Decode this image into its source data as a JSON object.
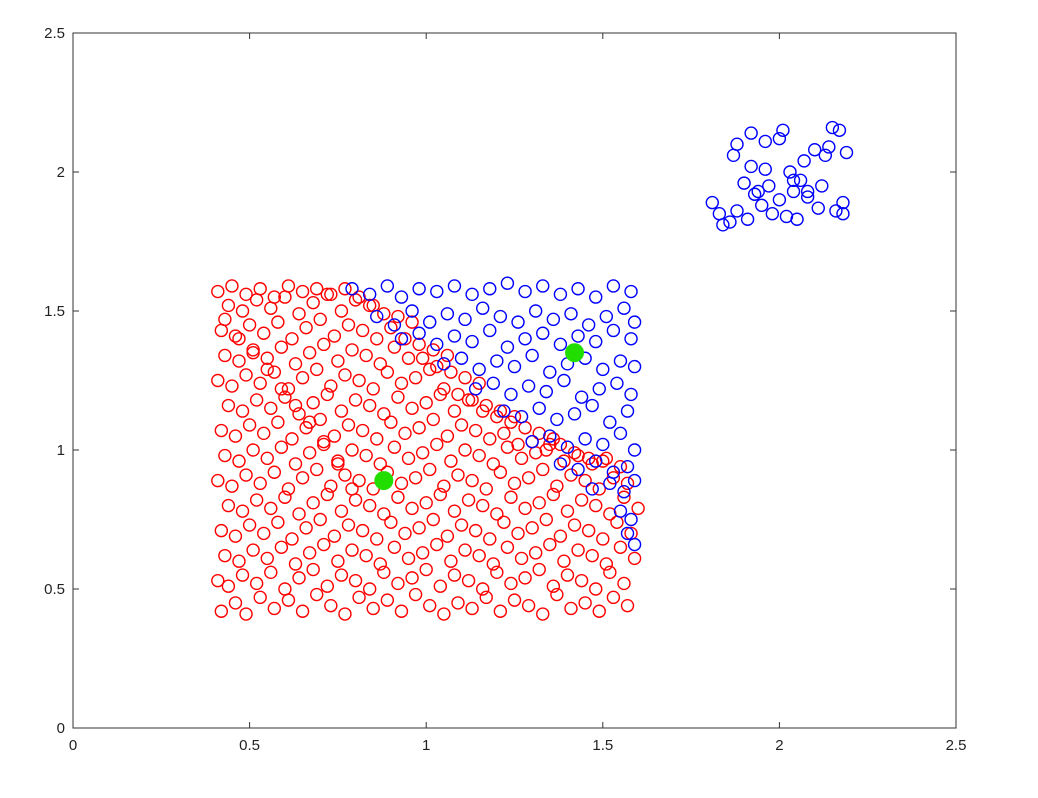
{
  "chart_data": {
    "type": "scatter",
    "title": "",
    "xlabel": "",
    "ylabel": "",
    "xlim": [
      0,
      2.5
    ],
    "ylim": [
      0,
      2.5
    ],
    "grid": false,
    "legend": "none",
    "xticks": [
      "0",
      "0.5",
      "1",
      "1.5",
      "2",
      "2.5"
    ],
    "yticks": [
      "0",
      "0.5",
      "1",
      "1.5",
      "2",
      "2.5"
    ],
    "colors": {
      "cluster_1": "#ff0000",
      "cluster_2": "#0000ff",
      "centroids": "#22dd00"
    },
    "series": [
      {
        "marker": "open-circle",
        "color": "#ff0000",
        "x": [
          0.42,
          0.46,
          0.49,
          0.53,
          0.57,
          0.61,
          0.65,
          0.69,
          0.73,
          0.77,
          0.81,
          0.85,
          0.89,
          0.93,
          0.97,
          1.01,
          1.05,
          1.09,
          1.13,
          1.17,
          1.21,
          1.25,
          1.29,
          1.33,
          1.37,
          1.41,
          1.45,
          1.49,
          1.53,
          1.57,
          0.41,
          0.44,
          0.48,
          0.52,
          0.56,
          0.6,
          0.64,
          0.68,
          0.72,
          0.76,
          0.8,
          0.84,
          0.88,
          0.92,
          0.96,
          1.0,
          1.04,
          1.08,
          1.12,
          1.16,
          1.2,
          1.24,
          1.28,
          1.32,
          1.36,
          1.4,
          1.44,
          1.48,
          1.52,
          1.56,
          0.43,
          0.47,
          0.51,
          0.55,
          0.59,
          0.63,
          0.67,
          0.71,
          0.75,
          0.79,
          0.83,
          0.87,
          0.91,
          0.95,
          0.99,
          1.03,
          1.07,
          1.11,
          1.15,
          1.19,
          1.23,
          1.27,
          1.31,
          1.35,
          1.39,
          1.43,
          1.47,
          1.51,
          1.55,
          1.59,
          0.42,
          0.46,
          0.5,
          0.54,
          0.58,
          0.62,
          0.66,
          0.7,
          0.74,
          0.78,
          0.82,
          0.86,
          0.9,
          0.94,
          0.98,
          1.02,
          1.06,
          1.1,
          1.14,
          1.18,
          1.22,
          1.26,
          1.3,
          1.34,
          1.38,
          1.42,
          1.46,
          1.5,
          1.54,
          1.58,
          0.44,
          0.48,
          0.52,
          0.56,
          0.6,
          0.64,
          0.68,
          0.72,
          0.76,
          0.8,
          0.84,
          0.88,
          0.92,
          0.96,
          1.0,
          1.04,
          1.08,
          1.12,
          1.16,
          1.2,
          1.24,
          1.28,
          1.32,
          1.36,
          1.4,
          1.44,
          1.48,
          1.52,
          1.56,
          1.6,
          0.41,
          0.45,
          0.49,
          0.53,
          0.57,
          0.61,
          0.65,
          0.69,
          0.73,
          0.77,
          0.81,
          0.85,
          0.89,
          0.93,
          0.97,
          1.01,
          1.05,
          1.09,
          1.13,
          1.17,
          1.21,
          1.25,
          1.29,
          1.33,
          1.37,
          1.41,
          1.45,
          1.49,
          1.53,
          1.57,
          0.43,
          0.47,
          0.51,
          0.55,
          0.59,
          0.63,
          0.67,
          0.71,
          0.75,
          0.79,
          0.83,
          0.87,
          0.91,
          0.95,
          0.99,
          1.03,
          1.07,
          1.11,
          1.15,
          1.19,
          1.23,
          1.27,
          1.31,
          1.35,
          1.39,
          1.43,
          1.47,
          1.51,
          1.55,
          0.42,
          0.46,
          0.5,
          0.54,
          0.58,
          0.62,
          0.66,
          0.7,
          0.74,
          0.78,
          0.82,
          0.86,
          0.9,
          0.94,
          0.98,
          1.02,
          1.06,
          1.1,
          1.14,
          1.18,
          1.22,
          1.26,
          1.3,
          1.34,
          1.38,
          1.42,
          1.46,
          1.5,
          0.44,
          0.48,
          0.52,
          0.56,
          0.6,
          0.64,
          0.68,
          0.72,
          0.76,
          0.8,
          0.84,
          0.88,
          0.92,
          0.96,
          1.0,
          1.04,
          1.08,
          1.12,
          1.16,
          1.2,
          1.24,
          1.28,
          1.32,
          1.36,
          0.41,
          0.45,
          0.49,
          0.53,
          0.57,
          0.61,
          0.65,
          0.69,
          0.73,
          0.77,
          0.81,
          0.85,
          0.89,
          0.93,
          0.97,
          1.01,
          1.05,
          1.09,
          1.13,
          1.17,
          1.21,
          1.25,
          0.43,
          0.47,
          0.51,
          0.55,
          0.59,
          0.63,
          0.67,
          0.71,
          0.75,
          0.79,
          0.83,
          0.87,
          0.91,
          0.95,
          0.99,
          1.03,
          1.07,
          1.11,
          1.15,
          0.42,
          0.46,
          0.5,
          0.54,
          0.58,
          0.62,
          0.66,
          0.7,
          0.74,
          0.78,
          0.82,
          0.86,
          0.9,
          0.94,
          0.98,
          1.02,
          1.06,
          0.44,
          0.48,
          0.52,
          0.56,
          0.6,
          0.64,
          0.68,
          0.72,
          0.76,
          0.8,
          0.84,
          0.88,
          0.92,
          0.96,
          0.41,
          0.45,
          0.49,
          0.53,
          0.57,
          0.61,
          0.65,
          0.69,
          0.73,
          0.77,
          0.81,
          0.85,
          0.43,
          0.47,
          0.51,
          0.55,
          0.59,
          0.63,
          0.67,
          0.71,
          0.75,
          0.79
        ],
        "y": [
          0.42,
          0.45,
          0.41,
          0.47,
          0.43,
          0.46,
          0.42,
          0.48,
          0.44,
          0.41,
          0.47,
          0.43,
          0.46,
          0.42,
          0.48,
          0.44,
          0.41,
          0.45,
          0.43,
          0.47,
          0.42,
          0.46,
          0.44,
          0.41,
          0.48,
          0.43,
          0.45,
          0.42,
          0.47,
          0.44,
          0.53,
          0.51,
          0.55,
          0.52,
          0.56,
          0.5,
          0.54,
          0.57,
          0.51,
          0.55,
          0.53,
          0.5,
          0.56,
          0.52,
          0.54,
          0.57,
          0.51,
          0.55,
          0.53,
          0.5,
          0.56,
          0.52,
          0.54,
          0.57,
          0.51,
          0.55,
          0.53,
          0.5,
          0.56,
          0.52,
          0.62,
          0.6,
          0.64,
          0.61,
          0.65,
          0.59,
          0.63,
          0.66,
          0.6,
          0.64,
          0.62,
          0.59,
          0.65,
          0.61,
          0.63,
          0.66,
          0.6,
          0.64,
          0.62,
          0.59,
          0.65,
          0.61,
          0.63,
          0.66,
          0.6,
          0.64,
          0.62,
          0.59,
          0.65,
          0.61,
          0.71,
          0.69,
          0.73,
          0.7,
          0.74,
          0.68,
          0.72,
          0.75,
          0.69,
          0.73,
          0.71,
          0.68,
          0.74,
          0.7,
          0.72,
          0.75,
          0.69,
          0.73,
          0.71,
          0.68,
          0.74,
          0.7,
          0.72,
          0.75,
          0.69,
          0.73,
          0.71,
          0.68,
          0.74,
          0.7,
          0.8,
          0.78,
          0.82,
          0.79,
          0.83,
          0.77,
          0.81,
          0.84,
          0.78,
          0.82,
          0.8,
          0.77,
          0.83,
          0.79,
          0.81,
          0.84,
          0.78,
          0.82,
          0.8,
          0.77,
          0.83,
          0.79,
          0.81,
          0.84,
          0.78,
          0.82,
          0.8,
          0.77,
          0.83,
          0.79,
          0.89,
          0.87,
          0.91,
          0.88,
          0.92,
          0.86,
          0.9,
          0.93,
          0.87,
          0.91,
          0.89,
          0.86,
          0.92,
          0.88,
          0.9,
          0.93,
          0.87,
          0.91,
          0.89,
          0.86,
          0.92,
          0.88,
          0.9,
          0.93,
          0.87,
          0.91,
          0.89,
          0.86,
          0.9,
          0.88,
          0.98,
          0.96,
          1.0,
          0.97,
          1.01,
          0.95,
          0.99,
          1.02,
          0.96,
          1.0,
          0.98,
          0.95,
          1.01,
          0.97,
          0.99,
          1.02,
          0.96,
          1.0,
          0.98,
          0.95,
          1.01,
          0.97,
          0.99,
          1.02,
          0.96,
          0.98,
          0.95,
          0.97,
          0.94,
          1.07,
          1.05,
          1.09,
          1.06,
          1.1,
          1.04,
          1.08,
          1.11,
          1.05,
          1.09,
          1.07,
          1.04,
          1.1,
          1.06,
          1.08,
          1.11,
          1.05,
          1.09,
          1.07,
          1.04,
          1.06,
          1.02,
          1.03,
          1.0,
          1.02,
          0.99,
          0.97,
          0.96,
          1.16,
          1.14,
          1.18,
          1.15,
          1.19,
          1.13,
          1.17,
          1.2,
          1.14,
          1.18,
          1.16,
          1.13,
          1.19,
          1.15,
          1.17,
          1.2,
          1.14,
          1.18,
          1.14,
          1.12,
          1.1,
          1.08,
          1.06,
          1.04,
          1.25,
          1.23,
          1.27,
          1.24,
          1.28,
          1.22,
          1.26,
          1.29,
          1.23,
          1.27,
          1.25,
          1.22,
          1.28,
          1.24,
          1.26,
          1.29,
          1.22,
          1.2,
          1.18,
          1.16,
          1.14,
          1.12,
          1.34,
          1.32,
          1.36,
          1.33,
          1.37,
          1.31,
          1.35,
          1.38,
          1.32,
          1.36,
          1.34,
          1.31,
          1.37,
          1.33,
          1.33,
          1.3,
          1.28,
          1.26,
          1.24,
          1.43,
          1.41,
          1.45,
          1.42,
          1.46,
          1.4,
          1.44,
          1.47,
          1.41,
          1.45,
          1.43,
          1.4,
          1.44,
          1.4,
          1.38,
          1.36,
          1.34,
          1.52,
          1.5,
          1.54,
          1.51,
          1.55,
          1.49,
          1.53,
          1.56,
          1.5,
          1.54,
          1.52,
          1.49,
          1.48,
          1.46,
          1.57,
          1.59,
          1.56,
          1.58,
          1.55,
          1.59,
          1.57,
          1.58,
          1.56,
          1.58,
          1.55,
          1.52,
          1.47,
          1.4,
          1.35,
          1.29,
          1.22,
          1.16,
          1.1,
          1.03,
          0.95,
          0.86
        ]
      },
      {
        "marker": "open-circle",
        "color": "#0000ff",
        "x": [
          0.79,
          0.84,
          0.89,
          0.93,
          0.98,
          1.03,
          1.08,
          1.13,
          1.18,
          1.23,
          1.28,
          1.33,
          1.38,
          1.43,
          1.48,
          1.53,
          1.58,
          0.86,
          0.91,
          0.96,
          1.01,
          1.06,
          1.11,
          1.16,
          1.21,
          1.26,
          1.31,
          1.36,
          1.41,
          1.46,
          1.51,
          1.56,
          1.59,
          0.93,
          0.98,
          1.03,
          1.08,
          1.13,
          1.18,
          1.23,
          1.28,
          1.33,
          1.38,
          1.43,
          1.48,
          1.53,
          1.58,
          1.05,
          1.1,
          1.15,
          1.2,
          1.25,
          1.3,
          1.35,
          1.4,
          1.45,
          1.5,
          1.55,
          1.59,
          1.14,
          1.19,
          1.24,
          1.29,
          1.34,
          1.39,
          1.44,
          1.49,
          1.54,
          1.58,
          1.22,
          1.27,
          1.32,
          1.37,
          1.42,
          1.47,
          1.52,
          1.57,
          1.3,
          1.35,
          1.4,
          1.45,
          1.5,
          1.55,
          1.59,
          1.38,
          1.43,
          1.48,
          1.53,
          1.57,
          1.47,
          1.52,
          1.56,
          1.59,
          1.55,
          1.58,
          1.57,
          1.59,
          1.83,
          1.86,
          1.88,
          1.91,
          1.93,
          1.95,
          1.97,
          2.0,
          2.02,
          2.04,
          2.06,
          2.08,
          2.11,
          2.13,
          2.16,
          2.18,
          1.81,
          1.84,
          1.87,
          1.9,
          1.92,
          1.94,
          1.96,
          1.98,
          2.01,
          2.03,
          2.05,
          2.07,
          2.1,
          2.12,
          2.15,
          2.17,
          2.19,
          1.88,
          1.92,
          1.96,
          2.0,
          2.04,
          2.08,
          2.14,
          2.18
        ],
        "y": [
          1.58,
          1.56,
          1.59,
          1.55,
          1.58,
          1.57,
          1.59,
          1.56,
          1.58,
          1.6,
          1.57,
          1.59,
          1.56,
          1.58,
          1.55,
          1.59,
          1.57,
          1.48,
          1.45,
          1.5,
          1.46,
          1.49,
          1.47,
          1.51,
          1.48,
          1.46,
          1.5,
          1.47,
          1.49,
          1.45,
          1.48,
          1.51,
          1.46,
          1.4,
          1.42,
          1.38,
          1.41,
          1.39,
          1.43,
          1.37,
          1.4,
          1.42,
          1.38,
          1.41,
          1.39,
          1.43,
          1.4,
          1.31,
          1.33,
          1.29,
          1.32,
          1.3,
          1.34,
          1.28,
          1.31,
          1.33,
          1.29,
          1.32,
          1.3,
          1.22,
          1.24,
          1.2,
          1.23,
          1.21,
          1.25,
          1.19,
          1.22,
          1.24,
          1.2,
          1.14,
          1.12,
          1.15,
          1.11,
          1.13,
          1.16,
          1.1,
          1.14,
          1.03,
          1.05,
          1.01,
          1.04,
          1.02,
          1.06,
          1.0,
          0.95,
          0.93,
          0.96,
          0.92,
          0.94,
          0.86,
          0.88,
          0.85,
          0.89,
          0.78,
          0.75,
          0.7,
          0.66,
          1.85,
          1.82,
          1.86,
          1.83,
          1.92,
          1.88,
          1.95,
          1.9,
          1.84,
          1.93,
          1.97,
          1.91,
          1.87,
          2.06,
          1.86,
          1.89,
          1.89,
          1.81,
          2.06,
          1.96,
          2.02,
          1.93,
          2.11,
          1.85,
          2.15,
          2.0,
          1.83,
          2.04,
          2.08,
          1.95,
          2.16,
          2.15,
          2.07,
          2.1,
          2.14,
          2.01,
          2.12,
          1.97,
          1.93,
          2.09,
          1.85
        ]
      },
      {
        "marker": "filled-circle",
        "color": "#22dd00",
        "x": [
          0.88,
          1.42
        ],
        "y": [
          0.89,
          1.35
        ]
      }
    ]
  }
}
